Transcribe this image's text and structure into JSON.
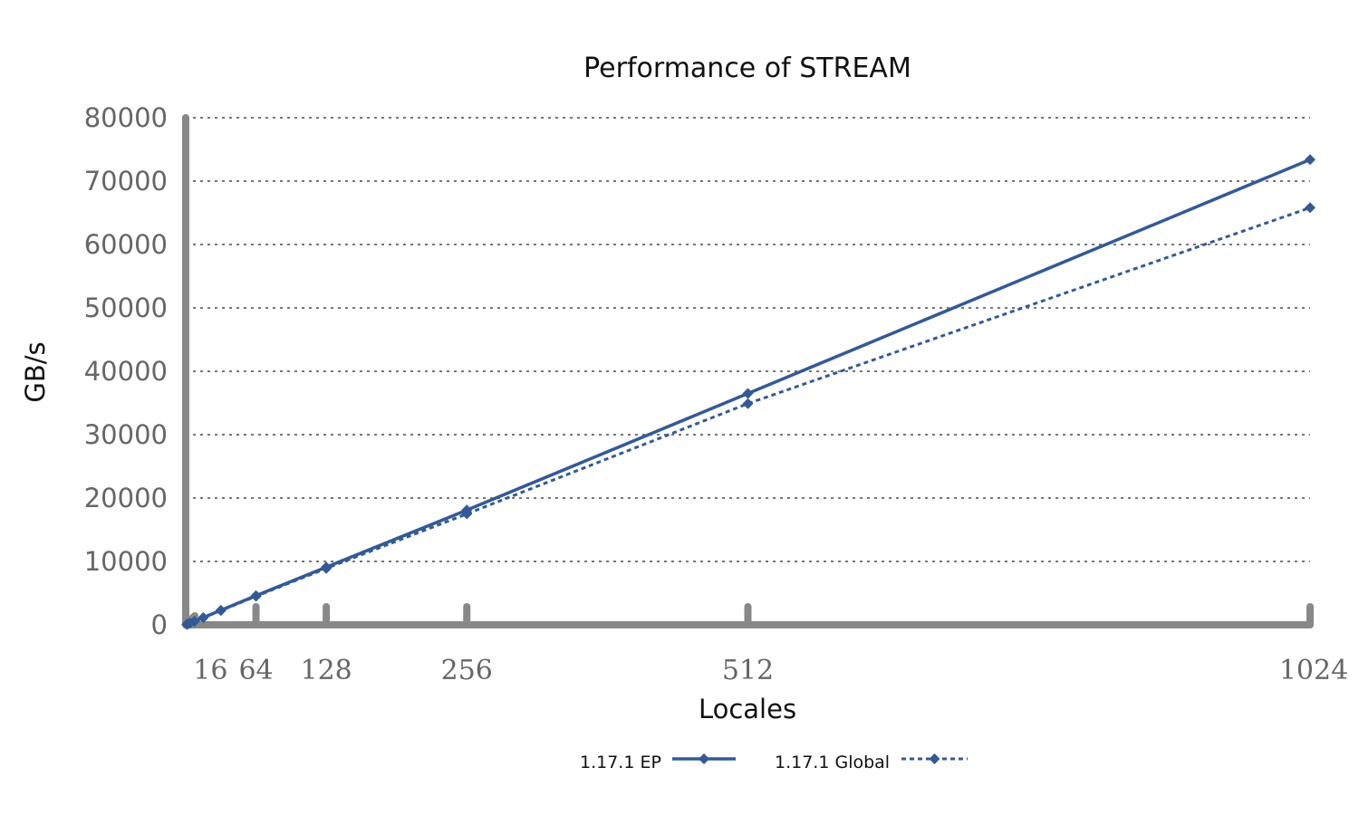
{
  "chart_data": {
    "type": "line",
    "title": "Performance of STREAM",
    "xlabel": "Locales",
    "ylabel": "GB/s",
    "xlim": [
      0,
      1024
    ],
    "ylim": [
      0,
      80000
    ],
    "x_ticks": [
      16,
      64,
      128,
      256,
      512,
      1024
    ],
    "y_ticks": [
      0,
      10000,
      20000,
      30000,
      40000,
      50000,
      60000,
      70000,
      80000
    ],
    "grid": true,
    "legend_position": "bottom",
    "series": [
      {
        "name": "1.17.1 EP",
        "style": "solid",
        "color": "#335a96",
        "x": [
          1,
          2,
          4,
          8,
          16,
          32,
          64,
          128,
          256,
          512,
          1024
        ],
        "y": [
          72,
          144,
          288,
          576,
          1150,
          2300,
          4600,
          9100,
          18100,
          36500,
          73400
        ]
      },
      {
        "name": "1.17.1 Global",
        "style": "dotted",
        "color": "#335a96",
        "x": [
          1,
          2,
          4,
          8,
          16,
          32,
          64,
          128,
          256,
          512,
          1024
        ],
        "y": [
          70,
          140,
          280,
          560,
          1120,
          2250,
          4500,
          8900,
          17500,
          34900,
          65800
        ]
      }
    ]
  }
}
